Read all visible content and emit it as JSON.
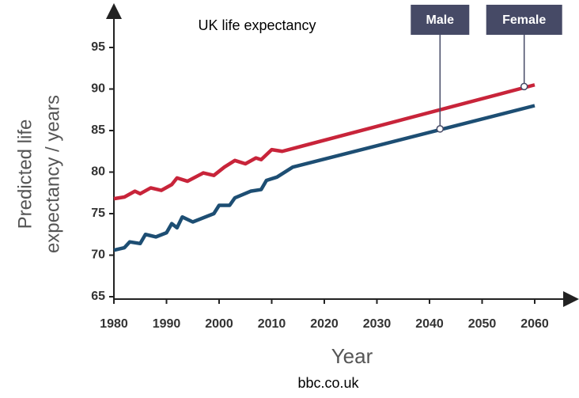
{
  "chart_data": {
    "type": "line",
    "title": "UK life expectancy",
    "xlabel": "Year",
    "ylabel": [
      "Predicted life",
      "expectancy / years"
    ],
    "source": "bbc.co.uk",
    "xlim": [
      1980,
      2067
    ],
    "xticks": [
      1980,
      1990,
      2000,
      2010,
      2020,
      2030,
      2040,
      2050,
      2060
    ],
    "ylim": [
      65,
      100
    ],
    "yticks": [
      65,
      70,
      75,
      80,
      85,
      90,
      95
    ],
    "series": [
      {
        "name": "Female",
        "color": "#c8243a",
        "x": [
          1980,
          1982,
          1984,
          1985,
          1987,
          1989,
          1991,
          1992,
          1994,
          1997,
          1999,
          2001,
          2003,
          2005,
          2007,
          2008,
          2010,
          2012,
          2060
        ],
        "values": [
          76.8,
          77.0,
          77.7,
          77.4,
          78.1,
          77.8,
          78.5,
          79.3,
          78.9,
          79.9,
          79.6,
          80.6,
          81.4,
          81.0,
          81.7,
          81.5,
          82.7,
          82.5,
          90.5
        ]
      },
      {
        "name": "Male",
        "color": "#1d4e73",
        "x": [
          1980,
          1982,
          1983,
          1985,
          1986,
          1988,
          1990,
          1991,
          1992,
          1993,
          1995,
          1999,
          2000,
          2002,
          2003,
          2006,
          2008,
          2009,
          2011,
          2014,
          2060
        ],
        "values": [
          70.6,
          70.9,
          71.6,
          71.4,
          72.5,
          72.2,
          72.7,
          73.8,
          73.3,
          74.6,
          74.0,
          75.0,
          76.0,
          76.0,
          76.9,
          77.7,
          77.9,
          79.0,
          79.4,
          80.6,
          88.0
        ]
      }
    ],
    "annotations": [
      {
        "text": "Male",
        "x": 2042,
        "y": 85.2
      },
      {
        "text": "Female",
        "x": 2058,
        "y": 90.3
      }
    ]
  }
}
